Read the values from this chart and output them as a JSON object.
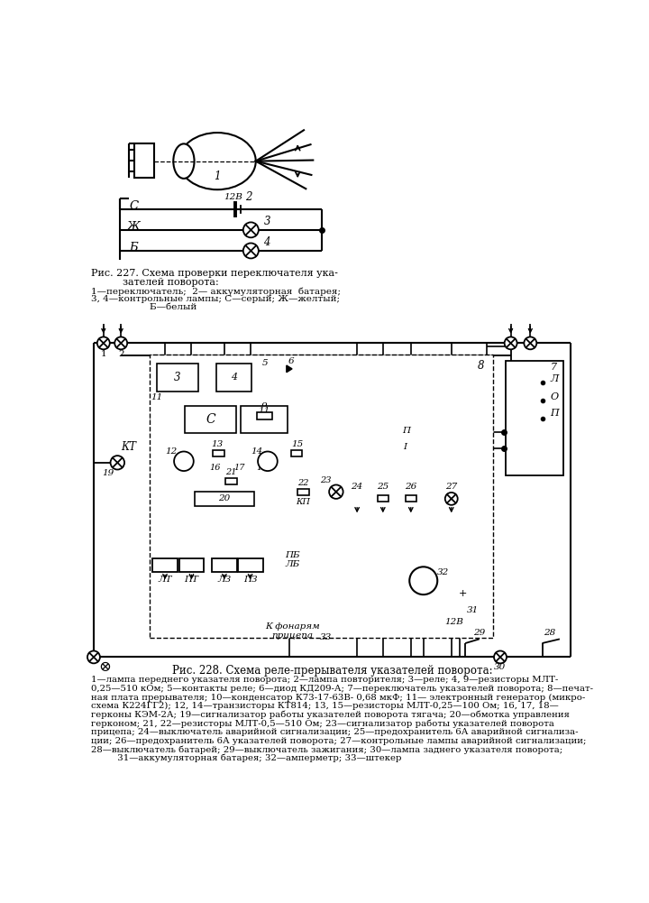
{
  "bg_color": "#ffffff",
  "line_color": "#000000",
  "text_color": "#000000",
  "fig227_caption_lines": [
    "Рис. 227. Схема проверки переключателя ука-",
    "          зателей поворота:",
    "1—переключатель;  2— аккумуляторная  батарея;",
    "3, 4—контрольные лампы; С—серый; Ж—желтый;",
    "                    Б—белый"
  ],
  "fig228_title": "Рис. 228. Схема реле-прерывателя указателей поворота:",
  "fig228_caption_lines": [
    "1—лампа переднего указателя поворота; 2—лампа повторителя; 3—реле; 4, 9—резисторы МЛТ-",
    "0,25—510 кОм; 5—контакты реле; 6—диод КД209-А; 7—переключатель указателей поворота; 8—печат-",
    "ная плата прерывателя; 10—конденсатор К73-17-63В- 0,68 мкФ; 11— электронный генератор (микро-",
    "схема К224ГГ2); 12, 14—транзисторы КТ814; 13, 15—резисторы МЛТ-0,25—100 Ом; 16, 17, 18—",
    "герконы КЭМ-2А; 19—сигнализатор работы указателей поворота тягача; 20—обмотка управления",
    "герконом; 21, 22—резисторы МЛТ-0,5—510 Ом; 23—сигнализатор работы указателей поворота",
    "прицепа; 24—выключатель аварийной сигнализации; 25—предохранитель 6А аварийной сигнализа-",
    "ции; 26—предохранитель 6А указателей поворота; 27—контрольные лампы аварийной сигнализации;",
    "28—выключатель батарей; 29—выключатель зажигания; 30—лампа заднего указателя поворота;",
    "         31—аккумуляторная батарея; 32—амперметр; 33—штекер"
  ]
}
